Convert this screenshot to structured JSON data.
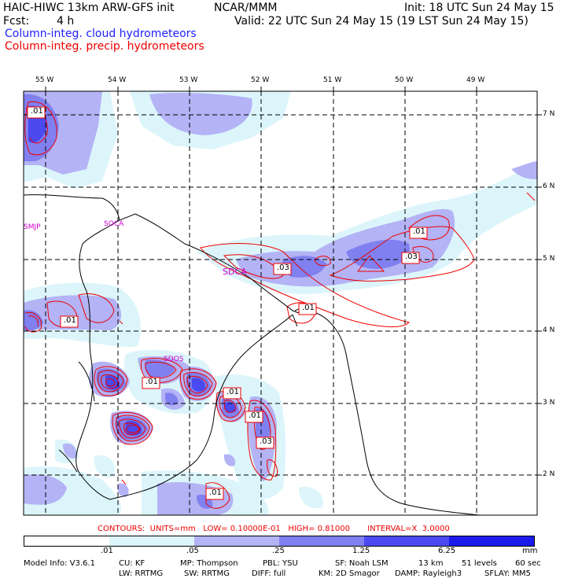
{
  "header": {
    "model": "HAIC-HIWC 13km ARW-GFS init",
    "org": "NCAR/MMM",
    "init": "Init: 18 UTC Sun 24 May 15",
    "fcst_label": "Fcst:",
    "fcst_value": "4 h",
    "valid": "Valid: 22 UTC Sun 24 May 15 (19 LST Sun 24 May 15)",
    "field_cloud": "Column-integ. cloud hydrometeors",
    "field_precip": "Column-integ. precip. hydrometeors"
  },
  "map": {
    "lon_labels": [
      "55 W",
      "54 W",
      "53 W",
      "52 W",
      "51 W",
      "50 W",
      "49 W"
    ],
    "lat_labels": [
      "7 N",
      "6 N",
      "5 N",
      "4 N",
      "3 N",
      "2 N"
    ],
    "stations": [
      "SMJP",
      "SOCA",
      "SDCA",
      "SDOS"
    ],
    "contour_labels": [
      ".01",
      ".01",
      ".03",
      ".03",
      ".01",
      ".01",
      ".01",
      ".01",
      ".01",
      ".03",
      ".01"
    ]
  },
  "contours_info": {
    "text": "CONTOURS:  UNITS=mm   LOW= 0.10000E-01   HIGH= 0.81000       INTERVAL=X  3.0000"
  },
  "colorbar": {
    "labels": [
      ".01",
      ".05",
      ".25",
      "1.25",
      "6.25"
    ],
    "units": "mm",
    "colors": [
      "#ffffff",
      "#dcf5fb",
      "#b3b3f5",
      "#8080f0",
      "#4a4af0",
      "#1a1aea"
    ]
  },
  "footer": {
    "line1": [
      "Model Info: V3.6.1",
      "CU: KF",
      "MP: Thompson",
      "PBL: YSU",
      "SF: Noah LSM",
      "13 km",
      "51 levels",
      "60 sec"
    ],
    "line2": [
      "LW: RRTMG",
      "SW: RRTMG",
      "DIFF: full",
      "KM: 2D Smagor",
      "DAMP: Rayleigh3",
      "SFLAY: MM5"
    ]
  }
}
